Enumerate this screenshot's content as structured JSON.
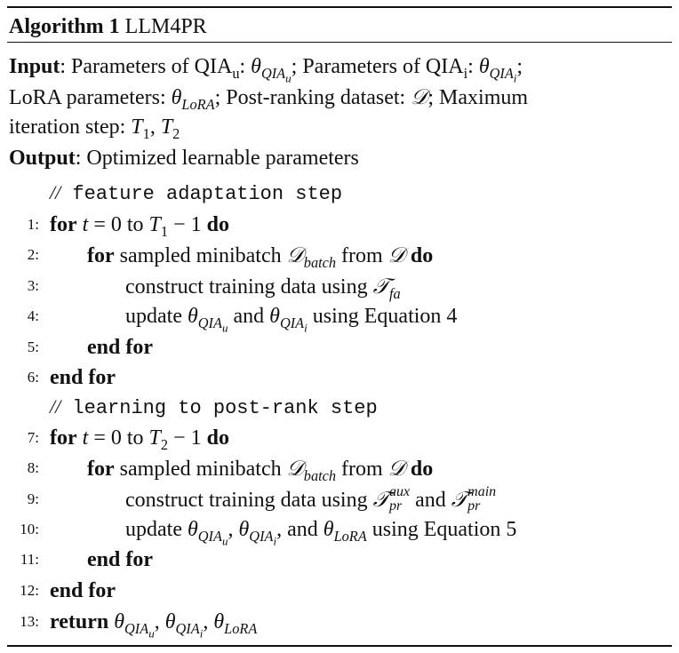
{
  "caption": {
    "label": "Algorithm 1",
    "name": "LLM4PR"
  },
  "header": {
    "input_label": "Input",
    "input_line1": {
      "a": ": Parameters of QIA",
      "sub_u": "u",
      "b": ": ",
      "theta": "θ",
      "qia": "QIA",
      "c": "; Parameters of QIA",
      "sub_i": "i",
      "d": ": ",
      "e": ";"
    },
    "input_line2": {
      "a": "LoRA parameters: ",
      "theta": "θ",
      "lora": "LoRA",
      "b": "; Post-ranking dataset: ",
      "dset": "𝒟",
      "c": "; Maximum"
    },
    "input_line3": {
      "a": "iteration step: ",
      "t": "T",
      "one": "1",
      "comma": ", ",
      "two": "2"
    },
    "output_label": "Output",
    "output_text": ": Optimized learnable parameters"
  },
  "steps": {
    "c1": {
      "slash": "//",
      "text": " feature adaptation step"
    },
    "s1": {
      "num": "1:",
      "for": "for",
      "t": "t",
      "mid": " = 0 to ",
      "T": "T",
      "sub": "1",
      "end": " − 1 ",
      "do": "do"
    },
    "s2": {
      "num": "2:",
      "for": "for",
      "a": " sampled minibatch ",
      "D": "𝒟",
      "sub": "batch",
      "b": " from ",
      "D2": "𝒟",
      "do": " do"
    },
    "s3": {
      "num": "3:",
      "a": "construct training data using ",
      "T": "𝒯",
      "sub": "fa"
    },
    "s4": {
      "num": "4:",
      "a": "update ",
      "theta": "θ",
      "qia": "QIA",
      "u": "u",
      "and": " and ",
      "i": "i",
      "b": " using Equation 4"
    },
    "s5": {
      "num": "5:",
      "text": "end for"
    },
    "s6": {
      "num": "6:",
      "text": "end for"
    },
    "c2": {
      "slash": "//",
      "text": " learning to post-rank step"
    },
    "s7": {
      "num": "7:",
      "for": "for",
      "t": "t",
      "mid": " = 0 to ",
      "T": "T",
      "sub": "2",
      "end": " − 1 ",
      "do": "do"
    },
    "s8": {
      "num": "8:",
      "for": "for",
      "a": " sampled minibatch ",
      "D": "𝒟",
      "sub": "batch",
      "b": " from ",
      "D2": "𝒟",
      "do": " do"
    },
    "s9": {
      "num": "9:",
      "a": "construct training data using ",
      "T": "𝒯",
      "aux": "aux",
      "pr": "pr",
      "and": " and ",
      "main": "main"
    },
    "s10": {
      "num": "10:",
      "a": "update ",
      "theta": "θ",
      "qia": "QIA",
      "u": "u",
      "comma": ", ",
      "i": "i",
      "and": ", and ",
      "lora": "LoRA",
      "b": " using Equation 5"
    },
    "s11": {
      "num": "11:",
      "text": "end for"
    },
    "s12": {
      "num": "12:",
      "text": "end for"
    },
    "s13": {
      "num": "13:",
      "ret": "return",
      "theta": "θ",
      "qia": "QIA",
      "u": "u",
      "comma": ", ",
      "i": "i",
      "lora": "LoRA"
    }
  }
}
